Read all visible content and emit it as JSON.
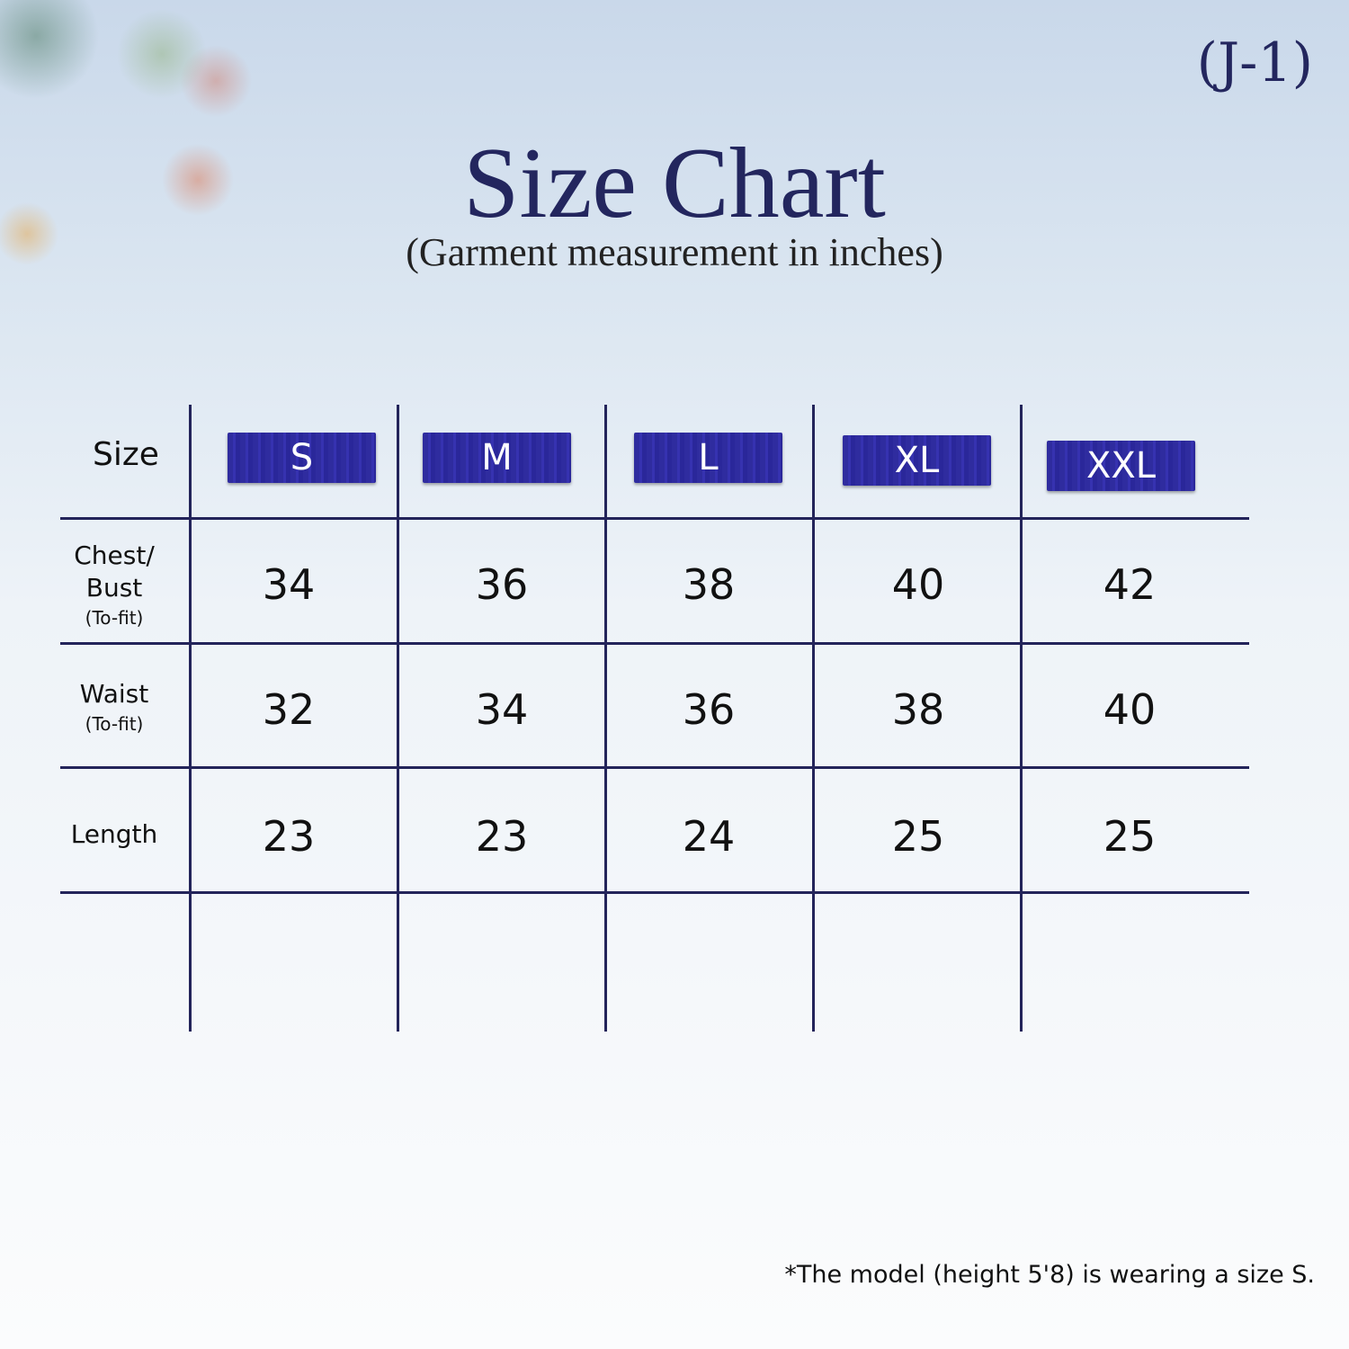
{
  "code": "(J-1)",
  "title": "Size Chart",
  "subtitle": "(Garment measurement in inches)",
  "header_label": "Size",
  "sizes": [
    "S",
    "M",
    "L",
    "XL",
    "XXL"
  ],
  "rows": [
    {
      "label": "Chest/ Bust",
      "sub": "(To-fit)",
      "values": [
        "34",
        "36",
        "38",
        "40",
        "42"
      ]
    },
    {
      "label": "Waist",
      "sub": "(To-fit)",
      "values": [
        "32",
        "34",
        "36",
        "38",
        "40"
      ]
    },
    {
      "label": "Length",
      "sub": "",
      "values": [
        "23",
        "23",
        "24",
        "25",
        "25"
      ]
    }
  ],
  "footnote": "*The model (height 5'8) is wearing a size S.",
  "colors": {
    "grid": "#23245a",
    "badge": "#2f2c9f",
    "title": "#23265e"
  },
  "chart_data": {
    "type": "table",
    "columns": [
      "Size",
      "S",
      "M",
      "L",
      "XL",
      "XXL"
    ],
    "rows": [
      [
        "Chest/ Bust (To-fit)",
        "34",
        "36",
        "38",
        "40",
        "42"
      ],
      [
        "Waist (To-fit)",
        "32",
        "34",
        "36",
        "38",
        "40"
      ],
      [
        "Length",
        "23",
        "23",
        "24",
        "25",
        "25"
      ]
    ]
  }
}
